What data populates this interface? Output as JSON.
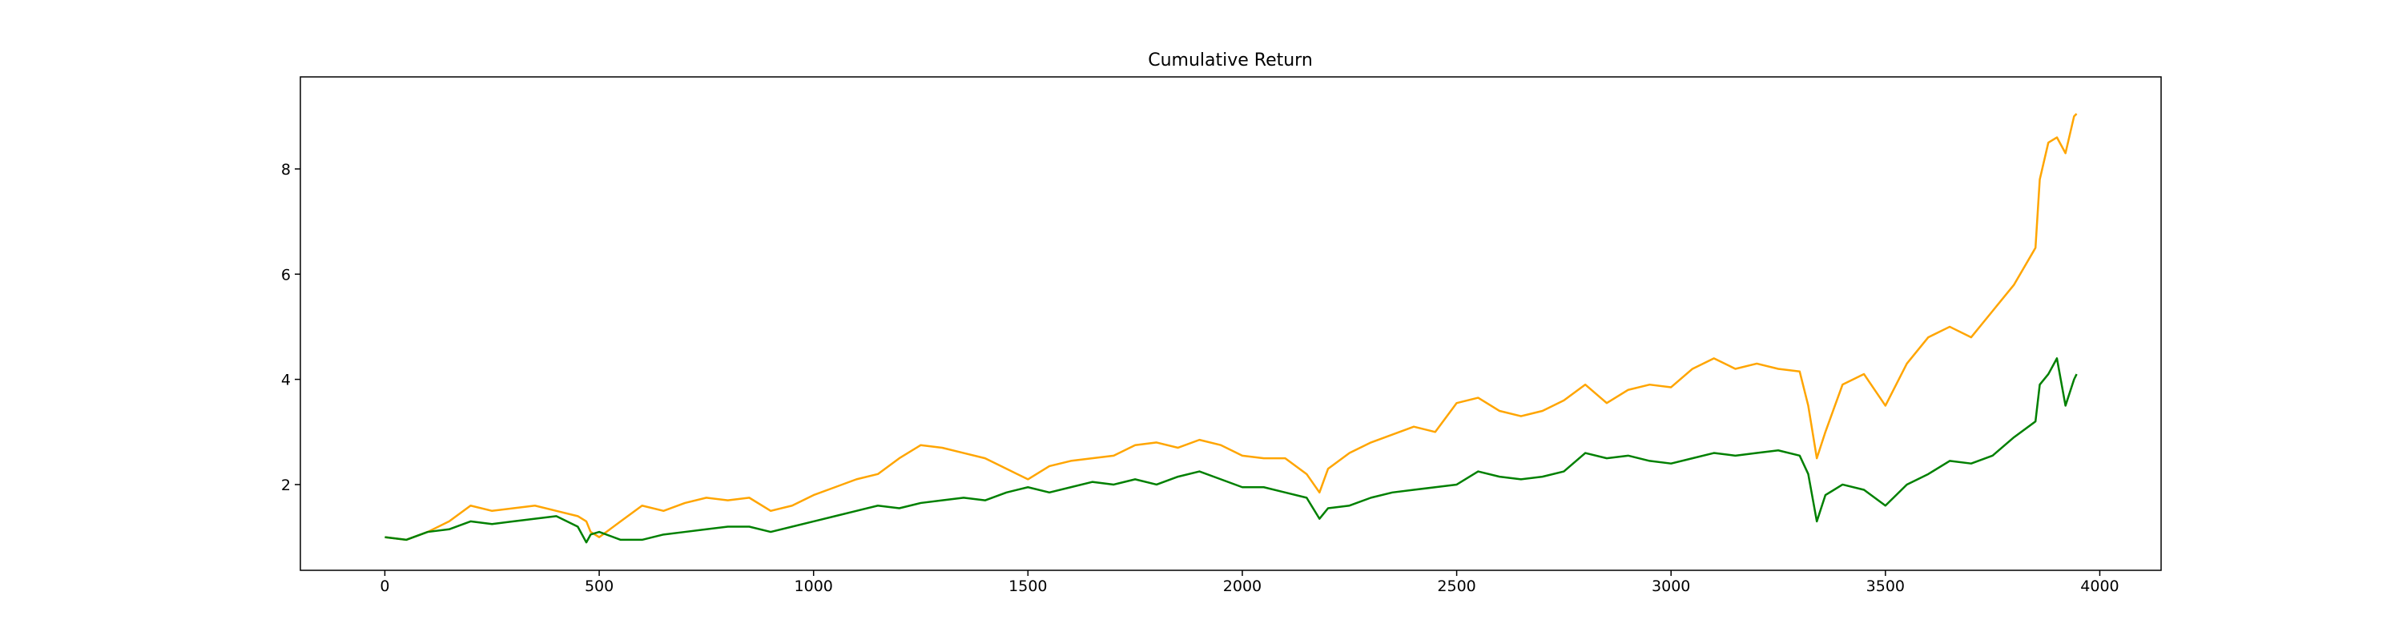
{
  "chart_data": {
    "type": "line",
    "title": "Cumulative Return",
    "x": [
      0,
      50,
      100,
      150,
      200,
      250,
      300,
      350,
      400,
      450,
      470,
      480,
      500,
      550,
      600,
      650,
      700,
      750,
      800,
      850,
      900,
      950,
      1000,
      1050,
      1100,
      1150,
      1200,
      1250,
      1300,
      1350,
      1400,
      1450,
      1500,
      1550,
      1600,
      1650,
      1700,
      1750,
      1800,
      1850,
      1900,
      1950,
      2000,
      2050,
      2100,
      2150,
      2180,
      2200,
      2250,
      2300,
      2350,
      2400,
      2450,
      2500,
      2550,
      2600,
      2650,
      2700,
      2750,
      2800,
      2850,
      2900,
      2950,
      3000,
      3050,
      3100,
      3150,
      3200,
      3250,
      3300,
      3320,
      3340,
      3360,
      3400,
      3450,
      3500,
      3550,
      3600,
      3650,
      3700,
      3750,
      3800,
      3850,
      3860,
      3880,
      3900,
      3920,
      3940,
      3946
    ],
    "series": [
      {
        "color": "#ffa500",
        "values": [
          1.0,
          0.95,
          1.1,
          1.3,
          1.6,
          1.5,
          1.55,
          1.6,
          1.5,
          1.4,
          1.3,
          1.1,
          1.0,
          1.3,
          1.6,
          1.5,
          1.65,
          1.75,
          1.7,
          1.75,
          1.5,
          1.6,
          1.8,
          1.95,
          2.1,
          2.2,
          2.5,
          2.75,
          2.7,
          2.6,
          2.5,
          2.3,
          2.1,
          2.35,
          2.45,
          2.5,
          2.55,
          2.75,
          2.8,
          2.7,
          2.85,
          2.75,
          2.55,
          2.5,
          2.5,
          2.2,
          1.85,
          2.3,
          2.6,
          2.8,
          2.95,
          3.1,
          3.0,
          3.55,
          3.65,
          3.4,
          3.3,
          3.4,
          3.6,
          3.9,
          3.55,
          3.8,
          3.9,
          3.85,
          4.2,
          4.4,
          4.2,
          4.3,
          4.2,
          4.15,
          3.5,
          2.5,
          3.0,
          3.9,
          4.1,
          3.5,
          4.3,
          4.8,
          5.0,
          4.8,
          5.3,
          5.8,
          6.5,
          7.8,
          8.5,
          8.6,
          8.3,
          9.0,
          9.05
        ]
      },
      {
        "color": "#008000",
        "values": [
          1.0,
          0.95,
          1.1,
          1.15,
          1.3,
          1.25,
          1.3,
          1.35,
          1.4,
          1.2,
          0.9,
          1.05,
          1.1,
          0.95,
          0.95,
          1.05,
          1.1,
          1.15,
          1.2,
          1.2,
          1.1,
          1.2,
          1.3,
          1.4,
          1.5,
          1.6,
          1.55,
          1.65,
          1.7,
          1.75,
          1.7,
          1.85,
          1.95,
          1.85,
          1.95,
          2.05,
          2.0,
          2.1,
          2.0,
          2.15,
          2.25,
          2.1,
          1.95,
          1.95,
          1.85,
          1.75,
          1.35,
          1.55,
          1.6,
          1.75,
          1.85,
          1.9,
          1.95,
          2.0,
          2.25,
          2.15,
          2.1,
          2.15,
          2.25,
          2.6,
          2.5,
          2.55,
          2.45,
          2.4,
          2.5,
          2.6,
          2.55,
          2.6,
          2.65,
          2.55,
          2.2,
          1.3,
          1.8,
          2.0,
          1.9,
          1.6,
          2.0,
          2.2,
          2.45,
          2.4,
          2.55,
          2.9,
          3.2,
          3.9,
          4.1,
          4.4,
          3.5,
          4.0,
          4.1
        ]
      }
    ],
    "xlim": [
      -197,
      4143
    ],
    "ylim": [
      0.37,
      9.75
    ],
    "xticks": [
      0,
      500,
      1000,
      1500,
      2000,
      2500,
      3000,
      3500,
      4000
    ],
    "yticks": [
      2,
      4,
      6,
      8
    ]
  }
}
